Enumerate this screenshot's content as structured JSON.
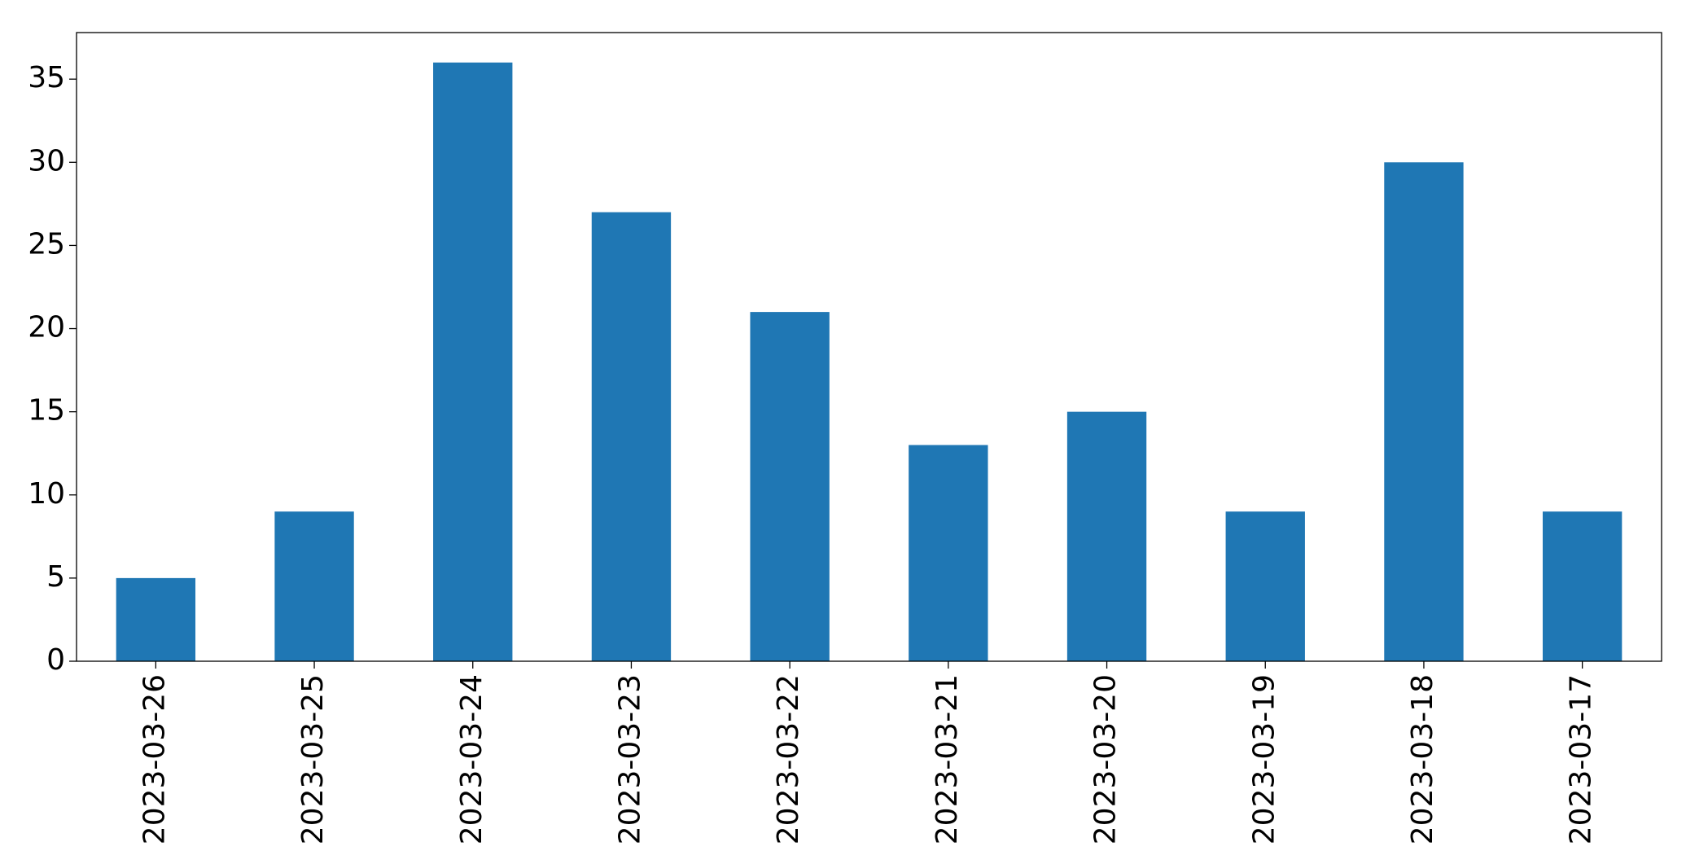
{
  "chart_data": {
    "type": "bar",
    "categories": [
      "2023-03-26",
      "2023-03-25",
      "2023-03-24",
      "2023-03-23",
      "2023-03-22",
      "2023-03-21",
      "2023-03-20",
      "2023-03-19",
      "2023-03-18",
      "2023-03-17"
    ],
    "values": [
      5,
      9,
      36,
      27,
      21,
      13,
      15,
      9,
      30,
      9
    ],
    "color": "#1f77b4",
    "ylim": [
      0,
      37.8
    ],
    "yticks": [
      0,
      5,
      10,
      15,
      20,
      25,
      30,
      35
    ],
    "grid": false
  }
}
